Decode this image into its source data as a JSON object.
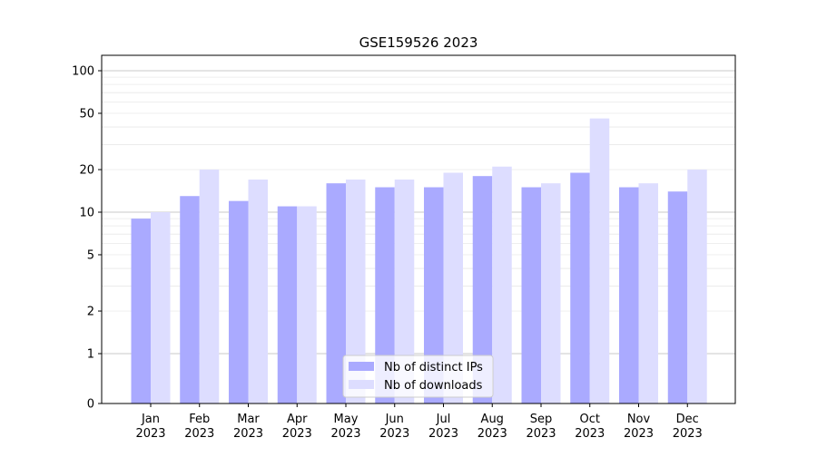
{
  "chart_data": {
    "type": "bar",
    "title": "GSE159526 2023",
    "xlabel": "",
    "ylabel": "",
    "y_scale": "symlog",
    "y_ticks": [
      0,
      1,
      2,
      5,
      10,
      20,
      50,
      100
    ],
    "ylim": [
      0,
      120
    ],
    "grid": true,
    "legend_position": "bottom-center",
    "categories": [
      [
        "Jan",
        "2023"
      ],
      [
        "Feb",
        "2023"
      ],
      [
        "Mar",
        "2023"
      ],
      [
        "Apr",
        "2023"
      ],
      [
        "May",
        "2023"
      ],
      [
        "Jun",
        "2023"
      ],
      [
        "Jul",
        "2023"
      ],
      [
        "Aug",
        "2023"
      ],
      [
        "Sep",
        "2023"
      ],
      [
        "Oct",
        "2023"
      ],
      [
        "Nov",
        "2023"
      ],
      [
        "Dec",
        "2023"
      ]
    ],
    "series": [
      {
        "name": "Nb of distinct IPs",
        "color": "#aaaaff",
        "values": [
          9,
          13,
          12,
          11,
          16,
          15,
          15,
          18,
          15,
          19,
          15,
          14
        ]
      },
      {
        "name": "Nb of downloads",
        "color": "#ddddff",
        "values": [
          10,
          20,
          17,
          11,
          17,
          17,
          19,
          21,
          16,
          46,
          16,
          20
        ]
      }
    ]
  }
}
